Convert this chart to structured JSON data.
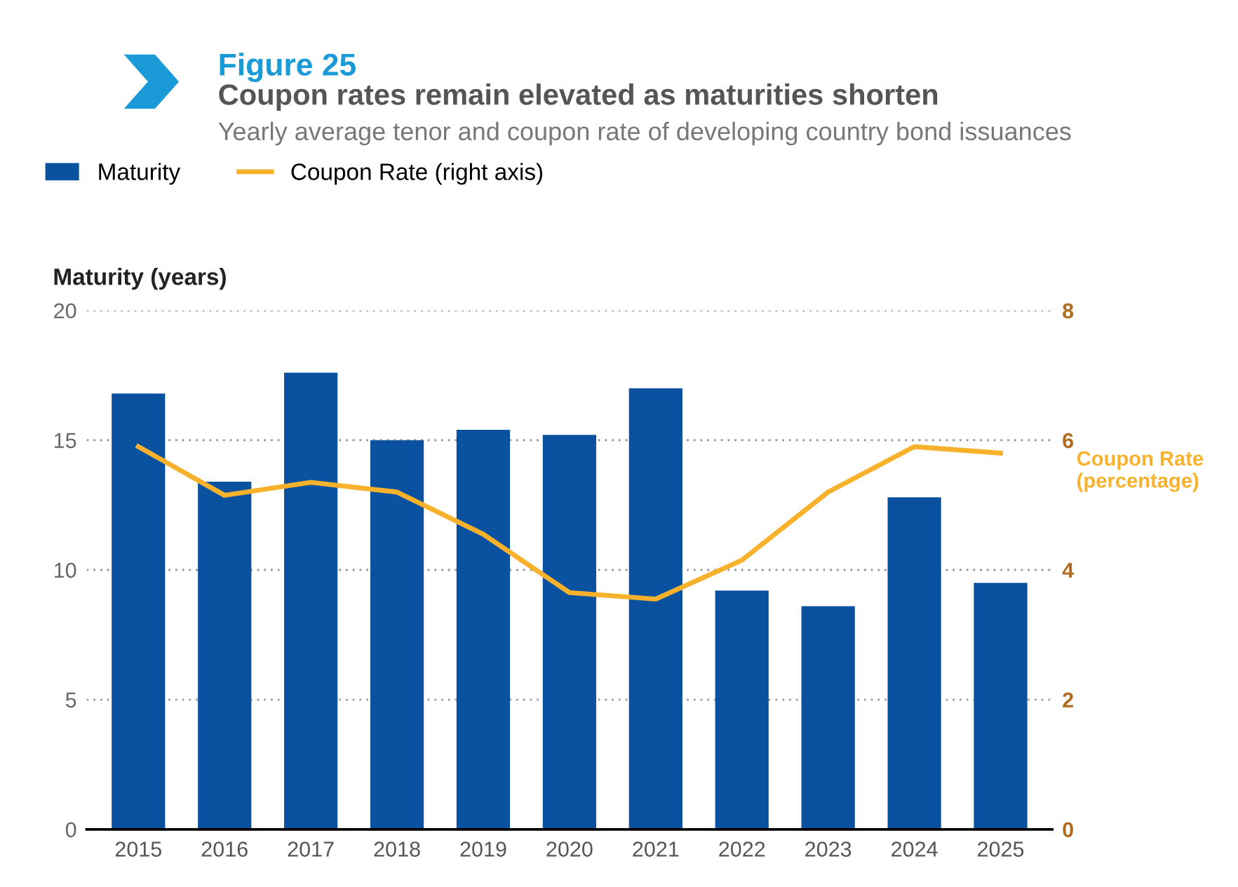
{
  "chart_data": {
    "type": "bar",
    "title": "Coupon rates remain elevated as maturities shorten",
    "subtitle": "Yearly average tenor and coupon rate of developing country bond issuances",
    "annotations": [
      "Figure 25"
    ],
    "ylabel": "Maturity (years)",
    "y2label": "Coupon Rate\n(percentage)",
    "categories": [
      "2015",
      "2016",
      "2017",
      "2018",
      "2019",
      "2020",
      "2021",
      "2022",
      "2023",
      "2024",
      "2025"
    ],
    "series": [
      {
        "name": "Maturity",
        "color": "#0a52a0",
        "values": [
          16.8,
          13.4,
          17.6,
          15.0,
          15.4,
          15.2,
          17.0,
          9.2,
          8.6,
          12.8,
          9.5
        ]
      },
      {
        "name": "Coupon Rate (right axis)",
        "type": "line",
        "axis": "y2",
        "color": "#f8b12a",
        "values": [
          5.9,
          5.15,
          5.35,
          5.2,
          4.55,
          3.65,
          3.55,
          4.15,
          5.2,
          5.9,
          5.8
        ]
      }
    ],
    "ylim": [
      0,
      20
    ],
    "yticks": [
      0,
      5,
      10,
      15,
      20
    ],
    "y2lim": [
      0,
      8
    ],
    "y2ticks": [
      0,
      2,
      4,
      6,
      8
    ],
    "grid": "y",
    "legend": "top left",
    "marker": "none",
    "line_style": "solid"
  }
}
